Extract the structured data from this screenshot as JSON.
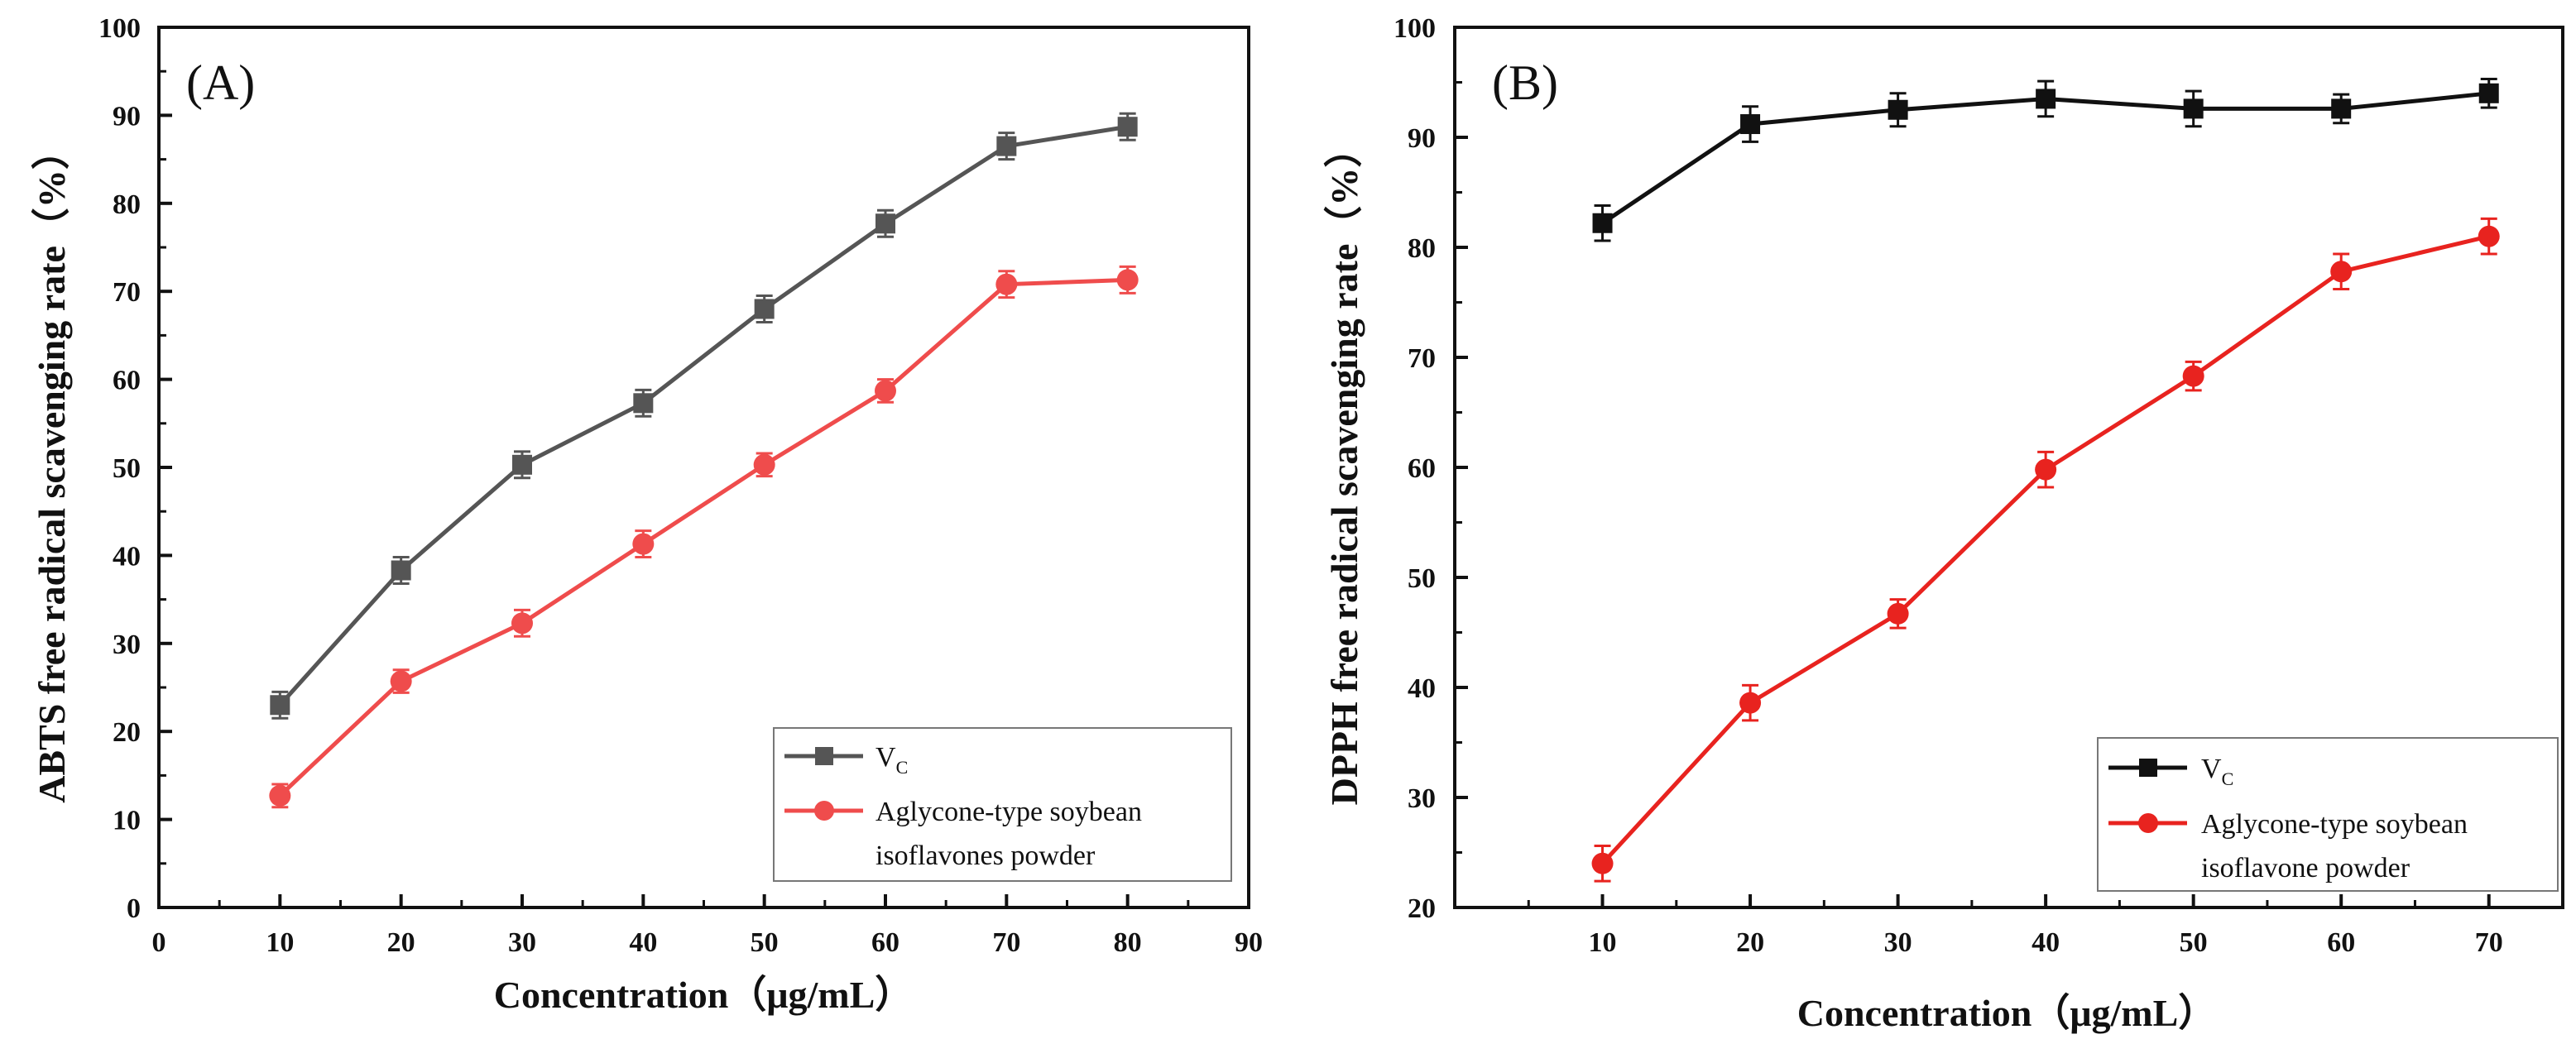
{
  "chart_data": [
    {
      "type": "line",
      "panel_label": "(A)",
      "ylabel": "ABTS free radical scavenging rate（%）",
      "xlabel": "Concentration（μg/mL）",
      "xlim": [
        0,
        90
      ],
      "ylim": [
        0,
        100
      ],
      "xticks": [
        "0",
        "10",
        "20",
        "30",
        "40",
        "50",
        "60",
        "70",
        "80",
        "90"
      ],
      "yticks": [
        "0",
        "10",
        "20",
        "30",
        "40",
        "50",
        "60",
        "70",
        "80",
        "90",
        "100"
      ],
      "legend": "bottom-right",
      "x": [
        10,
        20,
        30,
        40,
        50,
        60,
        70,
        80
      ],
      "series": [
        {
          "name": "V",
          "subscript": "C",
          "color": "#555555",
          "marker": "square",
          "values": [
            23,
            38.3,
            50.3,
            57.3,
            68,
            77.7,
            86.5,
            88.7
          ],
          "errors": [
            1.5,
            1.5,
            1.5,
            1.5,
            1.5,
            1.5,
            1.5,
            1.5
          ]
        },
        {
          "name": "Aglycone-type soybean",
          "name_line2": "isoflavones powder",
          "color": "#ef4c4c",
          "marker": "circle",
          "values": [
            12.7,
            25.7,
            32.3,
            41.3,
            50.3,
            58.7,
            70.8,
            71.3
          ],
          "errors": [
            1.3,
            1.3,
            1.5,
            1.5,
            1.3,
            1.3,
            1.5,
            1.5
          ]
        }
      ]
    },
    {
      "type": "line",
      "panel_label": "(B)",
      "ylabel": "DPPH free radical scavenging rate（%）",
      "xlabel": "Concentration（μg/mL）",
      "xlim": [
        0,
        75
      ],
      "ylim": [
        20,
        100
      ],
      "xticks": [
        "10",
        "20",
        "30",
        "40",
        "50",
        "60",
        "70"
      ],
      "yticks": [
        "20",
        "30",
        "40",
        "50",
        "60",
        "70",
        "80",
        "90",
        "100"
      ],
      "legend": "bottom-right",
      "x": [
        10,
        20,
        30,
        40,
        50,
        60,
        70
      ],
      "series": [
        {
          "name": "V",
          "subscript": "C",
          "color": "#111111",
          "marker": "square",
          "values": [
            82.2,
            91.2,
            92.5,
            93.5,
            92.6,
            92.6,
            94
          ],
          "errors": [
            1.6,
            1.6,
            1.5,
            1.6,
            1.6,
            1.3,
            1.3
          ]
        },
        {
          "name": "Aglycone-type soybean",
          "name_line2": "isoflavone powder",
          "color": "#e8231f",
          "marker": "circle",
          "values": [
            24,
            38.6,
            46.7,
            59.8,
            68.3,
            77.8,
            81
          ],
          "errors": [
            1.6,
            1.6,
            1.3,
            1.6,
            1.3,
            1.6,
            1.6
          ]
        }
      ]
    }
  ]
}
